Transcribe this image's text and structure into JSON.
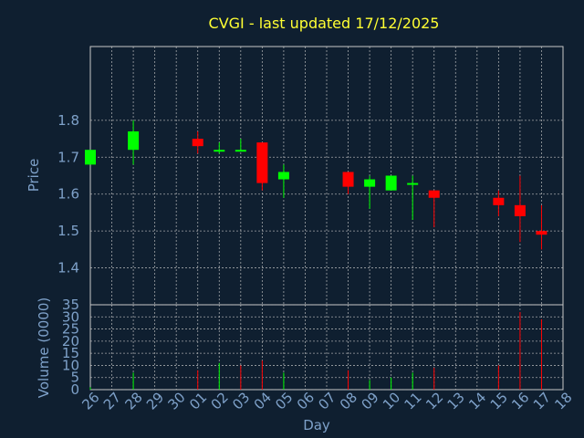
{
  "title": "CVGI - last updated 17/12/2025",
  "colors": {
    "background": "#0f1f30",
    "title": "#ffff33",
    "axis_text": "#7ea1c9",
    "up": "#00ff00",
    "down": "#ff0000",
    "grid": "#c8c8c8"
  },
  "chart_data": [
    {
      "type": "candlestick",
      "ylabel": "Price",
      "ylim": [
        1.3,
        2.0
      ],
      "yticks": [
        1.4,
        1.5,
        1.6,
        1.7,
        1.8
      ],
      "grid": true,
      "x": [
        "26",
        "27",
        "28",
        "29",
        "30",
        "01",
        "02",
        "03",
        "04",
        "05",
        "06",
        "07",
        "08",
        "09",
        "10",
        "11",
        "12",
        "13",
        "14",
        "15",
        "16",
        "17",
        "18"
      ],
      "candles": [
        {
          "day": "26",
          "open": 1.68,
          "close": 1.72,
          "high": 1.72,
          "low": 1.68
        },
        {
          "day": "28",
          "open": 1.72,
          "close": 1.77,
          "high": 1.8,
          "low": 1.68
        },
        {
          "day": "01",
          "open": 1.75,
          "close": 1.73,
          "high": 1.77,
          "low": 1.71
        },
        {
          "day": "02",
          "open": 1.72,
          "close": 1.72,
          "high": 1.74,
          "low": 1.71
        },
        {
          "day": "03",
          "open": 1.72,
          "close": 1.72,
          "high": 1.75,
          "low": 1.72
        },
        {
          "day": "04",
          "open": 1.74,
          "close": 1.63,
          "high": 1.74,
          "low": 1.61
        },
        {
          "day": "05",
          "open": 1.64,
          "close": 1.66,
          "high": 1.68,
          "low": 1.59
        },
        {
          "day": "08",
          "open": 1.66,
          "close": 1.62,
          "high": 1.66,
          "low": 1.6
        },
        {
          "day": "09",
          "open": 1.62,
          "close": 1.64,
          "high": 1.65,
          "low": 1.56
        },
        {
          "day": "10",
          "open": 1.61,
          "close": 1.65,
          "high": 1.65,
          "low": 1.61
        },
        {
          "day": "11",
          "open": 1.63,
          "close": 1.63,
          "high": 1.65,
          "low": 1.53
        },
        {
          "day": "12",
          "open": 1.61,
          "close": 1.59,
          "high": 1.61,
          "low": 1.51
        },
        {
          "day": "15",
          "open": 1.59,
          "close": 1.57,
          "high": 1.61,
          "low": 1.54
        },
        {
          "day": "16",
          "open": 1.57,
          "close": 1.54,
          "high": 1.65,
          "low": 1.47
        },
        {
          "day": "17",
          "open": 1.5,
          "close": 1.49,
          "high": 1.57,
          "low": 1.45
        }
      ]
    },
    {
      "type": "bar",
      "xlabel": "Day",
      "ylabel": "Volume (0000)",
      "ylim": [
        0,
        35
      ],
      "yticks": [
        0,
        5,
        10,
        15,
        20,
        25,
        30,
        35
      ],
      "grid": true,
      "x": [
        "26",
        "27",
        "28",
        "29",
        "30",
        "01",
        "02",
        "03",
        "04",
        "05",
        "06",
        "07",
        "08",
        "09",
        "10",
        "11",
        "12",
        "13",
        "14",
        "15",
        "16",
        "17",
        "18"
      ],
      "bars": [
        {
          "day": "26",
          "value": 1,
          "direction": "up"
        },
        {
          "day": "28",
          "value": 7,
          "direction": "up"
        },
        {
          "day": "01",
          "value": 8,
          "direction": "down"
        },
        {
          "day": "02",
          "value": 11,
          "direction": "up"
        },
        {
          "day": "03",
          "value": 10,
          "direction": "down"
        },
        {
          "day": "04",
          "value": 12,
          "direction": "down"
        },
        {
          "day": "05",
          "value": 7,
          "direction": "up"
        },
        {
          "day": "08",
          "value": 8,
          "direction": "down"
        },
        {
          "day": "09",
          "value": 4,
          "direction": "up"
        },
        {
          "day": "10",
          "value": 5,
          "direction": "up"
        },
        {
          "day": "11",
          "value": 7,
          "direction": "up"
        },
        {
          "day": "12",
          "value": 9,
          "direction": "down"
        },
        {
          "day": "15",
          "value": 10,
          "direction": "down"
        },
        {
          "day": "16",
          "value": 32,
          "direction": "down"
        },
        {
          "day": "17",
          "value": 29,
          "direction": "down"
        }
      ]
    }
  ]
}
